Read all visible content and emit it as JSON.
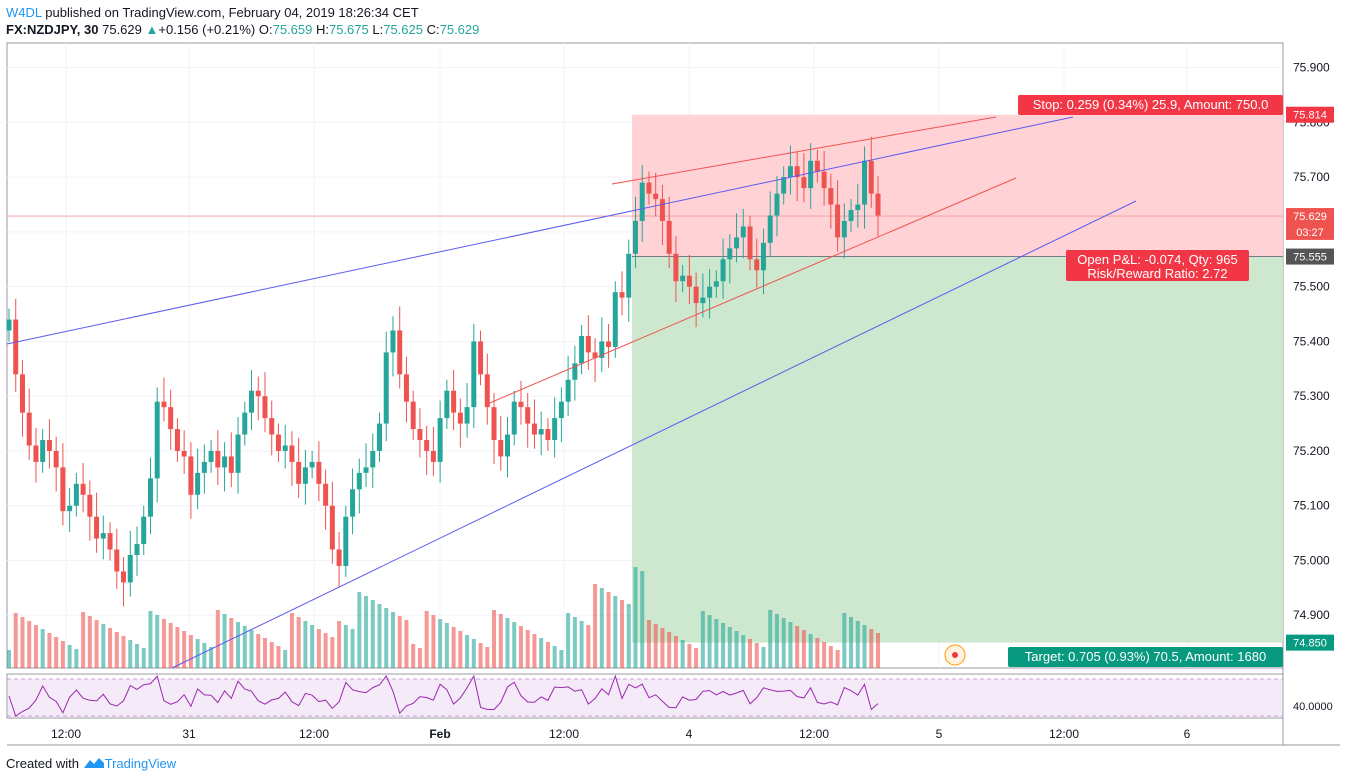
{
  "header": {
    "user": "W4DL",
    "published_text": "published on TradingView.com, February 04, 2019 18:26:34 CET"
  },
  "ticker": {
    "symbol": "FX:NZDJPY, 30",
    "last": "75.629",
    "change": "+0.156 (+0.21%)",
    "o_label": "O:",
    "o_value": "75.659",
    "h_label": "H:",
    "h_value": "75.675",
    "l_label": "L:",
    "l_value": "75.625",
    "c_label": "C:",
    "c_value": "75.629"
  },
  "footer": {
    "created_with": "Created with",
    "brand": "TradingView"
  },
  "colors": {
    "up": "#26a69a",
    "down": "#ef5350",
    "stop_zone": "#ffcdd2",
    "target_zone": "#c8e6c9",
    "stop_label": "#f23645",
    "target_label": "#089981",
    "blue_line": "#5b5bf0",
    "red_line": "#ef5350",
    "rsi": "#9c27b0"
  },
  "chart_data": {
    "type": "candlestick",
    "symbol": "FX:NZDJPY",
    "interval": "30",
    "ylim": [
      74.8,
      76.0
    ],
    "yticks": [
      "75.900",
      "75.800",
      "75.700",
      "75.600",
      "75.500",
      "75.400",
      "75.300",
      "75.200",
      "75.100",
      "75.000",
      "74.900"
    ],
    "xticks": [
      "12:00",
      "31",
      "12:00",
      "Feb",
      "12:00",
      "4",
      "12:00",
      "5",
      "12:00",
      "6"
    ],
    "price_labels": [
      {
        "text": "75.814",
        "value": 75.814,
        "color": "#f23645"
      },
      {
        "text": "75.629",
        "value": 75.629,
        "color": "#ef5350"
      },
      {
        "text": "03:27",
        "value": 75.6,
        "color": "#ef5350"
      },
      {
        "text": "75.555",
        "value": 75.555,
        "color": "#555555"
      },
      {
        "text": "74.850",
        "value": 74.85,
        "color": "#089981"
      }
    ],
    "position": {
      "entry": 75.555,
      "stop": 75.814,
      "target": 74.85,
      "stop_text": "Stop: 0.259 (0.34%) 25.9, Amount: 750.0",
      "target_text": "Target: 0.705 (0.93%) 70.5, Amount: 1680",
      "pnl_text": "Open P&L: -0.074, Qty: 965",
      "rr_text": "Risk/Reward Ratio: 2.72"
    },
    "rsi": {
      "label": "40.0000",
      "value": 40.0
    },
    "candles_close": [
      75.44,
      75.34,
      75.27,
      75.21,
      75.18,
      75.22,
      75.2,
      75.17,
      75.09,
      75.1,
      75.14,
      75.12,
      75.08,
      75.04,
      75.05,
      75.02,
      74.98,
      74.96,
      75.01,
      75.03,
      75.08,
      75.15,
      75.29,
      75.28,
      75.24,
      75.2,
      75.19,
      75.12,
      75.16,
      75.18,
      75.2,
      75.17,
      75.19,
      75.16,
      75.23,
      75.27,
      75.31,
      75.3,
      75.26,
      75.23,
      75.2,
      75.21,
      75.18,
      75.14,
      75.17,
      75.18,
      75.14,
      75.1,
      75.02,
      74.99,
      75.08,
      75.13,
      75.16,
      75.17,
      75.2,
      75.25,
      75.38,
      75.42,
      75.34,
      75.29,
      75.24,
      75.22,
      75.2,
      75.18,
      75.26,
      75.31,
      75.27,
      75.25,
      75.28,
      75.4,
      75.34,
      75.28,
      75.22,
      75.19,
      75.23,
      75.29,
      75.28,
      75.25,
      75.23,
      75.24,
      75.22,
      75.26,
      75.29,
      75.33,
      75.36,
      75.41,
      75.38,
      75.37,
      75.4,
      75.39,
      75.49,
      75.48,
      75.56,
      75.62,
      75.69,
      75.67,
      75.66,
      75.62,
      75.56,
      75.51,
      75.52,
      75.5,
      75.47,
      75.48,
      75.5,
      75.51,
      75.55,
      75.57,
      75.59,
      75.61,
      75.55,
      75.53,
      75.58,
      75.63,
      75.67,
      75.7,
      75.72,
      75.7,
      75.68,
      75.73,
      75.71,
      75.68,
      75.65,
      75.59,
      75.62,
      75.64,
      75.65,
      75.73,
      75.67,
      75.63
    ]
  }
}
